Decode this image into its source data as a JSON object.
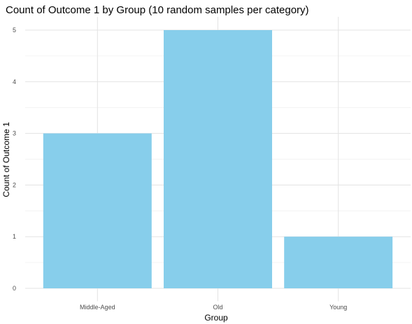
{
  "chart_data": {
    "type": "bar",
    "title": "Count of Outcome 1 by Group (10 random samples per category)",
    "xlabel": "Group",
    "ylabel": "Count of Outcome 1",
    "categories": [
      "Middle-Aged",
      "Old",
      "Young"
    ],
    "values": [
      3,
      5,
      1
    ],
    "ylim": [
      0,
      5.25
    ],
    "yticks": [
      0,
      1,
      2,
      3,
      4,
      5
    ],
    "grid": true,
    "legend": "none",
    "bar_color": "#87CEEB"
  }
}
